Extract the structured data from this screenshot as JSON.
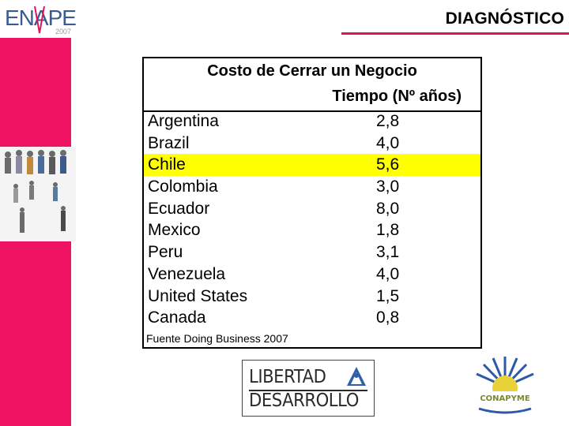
{
  "header": {
    "logo_text": "ENAPE",
    "logo_year": "2007",
    "title": "DIAGNÓSTICO"
  },
  "table": {
    "title": "Costo de Cerrar un Negocio",
    "column_header": "Tiempo (Nº años)",
    "rows": [
      {
        "country": "Argentina",
        "value": "2,8"
      },
      {
        "country": "Brazil",
        "value": "4,0"
      },
      {
        "country": "Chile",
        "value": "5,6"
      },
      {
        "country": "Colombia",
        "value": "3,0"
      },
      {
        "country": "Ecuador",
        "value": "8,0"
      },
      {
        "country": "Mexico",
        "value": "1,8"
      },
      {
        "country": "Peru",
        "value": "3,1"
      },
      {
        "country": "Venezuela",
        "value": "4,0"
      },
      {
        "country": "United States",
        "value": "1,5"
      },
      {
        "country": "Canada",
        "value": "0,8"
      }
    ],
    "highlighted_row": "Chile",
    "source": "Fuente Doing Business 2007"
  },
  "logos": {
    "libertad_line1": "LIBERTAD",
    "libertad_line2": "DESARROLLO",
    "conapyme": "CONAPYME"
  },
  "colors": {
    "accent_pink": "#ee1463",
    "highlight": "#ffff00"
  }
}
